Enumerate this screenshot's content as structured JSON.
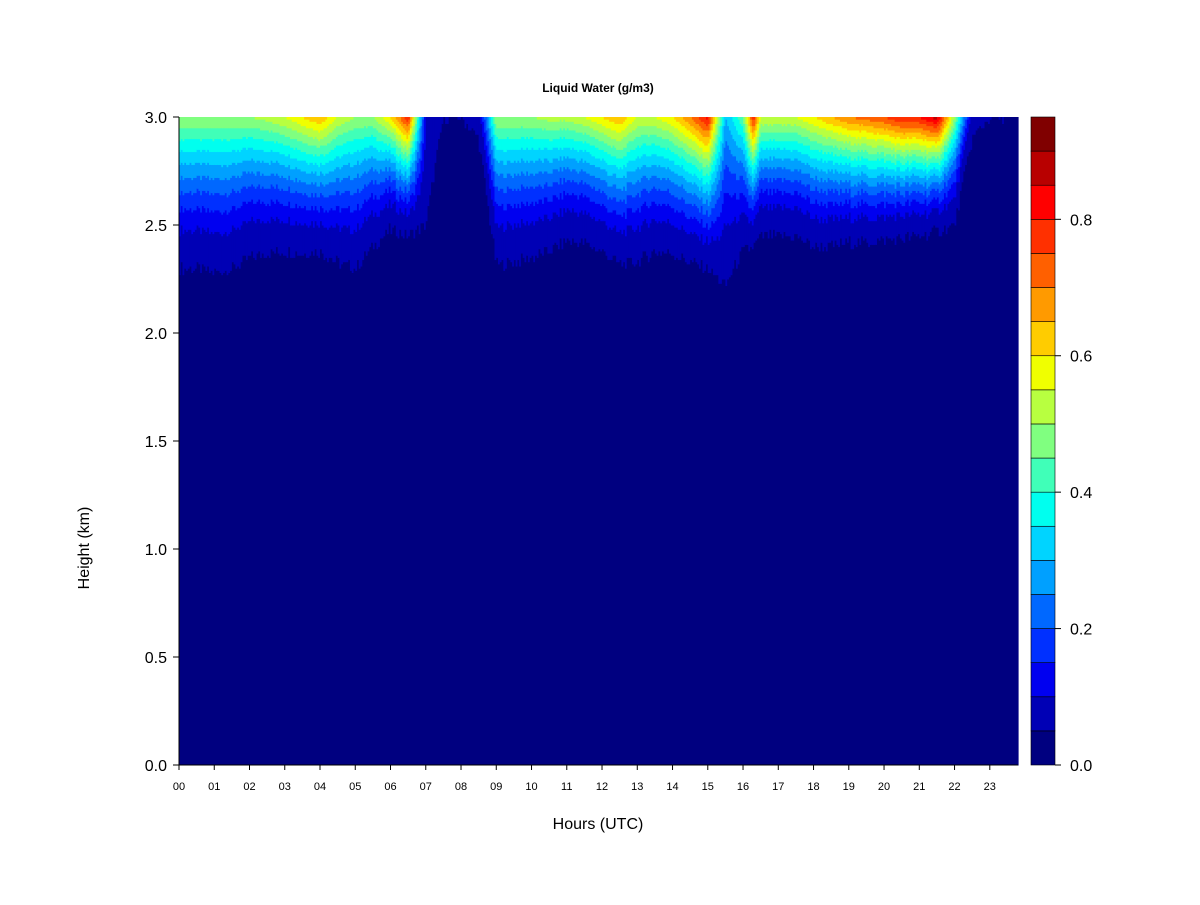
{
  "chart_data": {
    "type": "heatmap",
    "title": "Liquid Water (g/m3)",
    "xlabel": "Hours (UTC)",
    "ylabel": "Height (km)",
    "xlim": [
      0,
      23.8
    ],
    "ylim": [
      0,
      3.0
    ],
    "x_tick_labels": [
      "00",
      "01",
      "02",
      "03",
      "04",
      "05",
      "06",
      "07",
      "08",
      "09",
      "10",
      "11",
      "12",
      "13",
      "14",
      "15",
      "16",
      "17",
      "18",
      "19",
      "20",
      "21",
      "22",
      "23"
    ],
    "y_tick_labels": [
      "0.0",
      "0.5",
      "1.0",
      "1.5",
      "2.0",
      "2.5",
      "3.0"
    ],
    "colorbar": {
      "levels_min": 0.0,
      "levels_max": 0.95,
      "level_step": 0.05,
      "tick_labels": [
        "0.0",
        "0.2",
        "0.4",
        "0.6",
        "0.8"
      ],
      "colors": [
        "#000080",
        "#0000b5",
        "#0000f0",
        "#0030ff",
        "#0068ff",
        "#00a0ff",
        "#00d4ff",
        "#00ffef",
        "#40ffb8",
        "#80ff80",
        "#b8ff40",
        "#f0ff00",
        "#ffcc00",
        "#ff9a00",
        "#ff6000",
        "#ff3000",
        "#ff0000",
        "#b80000",
        "#800000"
      ]
    },
    "time_hours": [
      0,
      0.5,
      1,
      1.5,
      2,
      2.5,
      3,
      3.5,
      4,
      4.5,
      5,
      5.5,
      6,
      6.5,
      7,
      7.5,
      8,
      8.5,
      9,
      9.5,
      10,
      10.5,
      11,
      11.5,
      12,
      12.5,
      13,
      13.5,
      14,
      14.5,
      15,
      15.5,
      16,
      16.3,
      16.5,
      17,
      17.5,
      18,
      18.5,
      19,
      19.5,
      20,
      20.5,
      21,
      21.5,
      22,
      22.5,
      23,
      23.5,
      23.8
    ],
    "lwc_at_3km_gm3": [
      0.5,
      0.5,
      0.5,
      0.5,
      0.5,
      0.52,
      0.55,
      0.6,
      0.65,
      0.55,
      0.5,
      0.5,
      0.6,
      0.8,
      0.1,
      0.02,
      0.02,
      0.05,
      0.5,
      0.5,
      0.5,
      0.52,
      0.52,
      0.55,
      0.6,
      0.65,
      0.55,
      0.55,
      0.6,
      0.7,
      0.82,
      0.3,
      0.45,
      0.8,
      0.55,
      0.55,
      0.55,
      0.6,
      0.65,
      0.7,
      0.72,
      0.75,
      0.8,
      0.8,
      0.88,
      0.5,
      0.05,
      0.03,
      0.02,
      0.02
    ],
    "height_of_0.05_contour_km": [
      2.3,
      2.3,
      2.28,
      2.3,
      2.35,
      2.37,
      2.38,
      2.37,
      2.38,
      2.33,
      2.3,
      2.4,
      2.48,
      2.45,
      2.5,
      3.0,
      3.0,
      2.9,
      2.32,
      2.33,
      2.35,
      2.38,
      2.43,
      2.42,
      2.38,
      2.32,
      2.33,
      2.38,
      2.37,
      2.33,
      2.3,
      2.22,
      2.38,
      2.4,
      2.45,
      2.45,
      2.45,
      2.4,
      2.4,
      2.42,
      2.42,
      2.43,
      2.44,
      2.45,
      2.47,
      2.5,
      2.9,
      3.0,
      3.0,
      3.0
    ]
  }
}
